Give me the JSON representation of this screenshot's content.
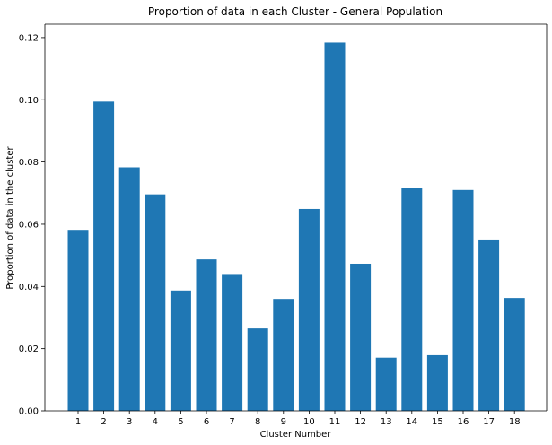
{
  "chart_data": {
    "type": "bar",
    "title": "Proportion of data in each Cluster - General Population",
    "xlabel": "Cluster Number",
    "ylabel": "Proportion of data in the cluster",
    "categories": [
      "1",
      "2",
      "3",
      "4",
      "5",
      "6",
      "7",
      "8",
      "9",
      "10",
      "11",
      "12",
      "13",
      "14",
      "15",
      "16",
      "17",
      "18"
    ],
    "values": [
      0.0582,
      0.0994,
      0.0783,
      0.0696,
      0.0387,
      0.0487,
      0.044,
      0.0265,
      0.036,
      0.0649,
      0.1184,
      0.0473,
      0.0171,
      0.0718,
      0.0179,
      0.071,
      0.0551,
      0.0363
    ],
    "yticks": [
      "0.00",
      "0.02",
      "0.04",
      "0.06",
      "0.08",
      "0.10",
      "0.12"
    ],
    "ylim": [
      0,
      0.1243
    ],
    "grid": false,
    "bar_color": "#1f77b4"
  }
}
